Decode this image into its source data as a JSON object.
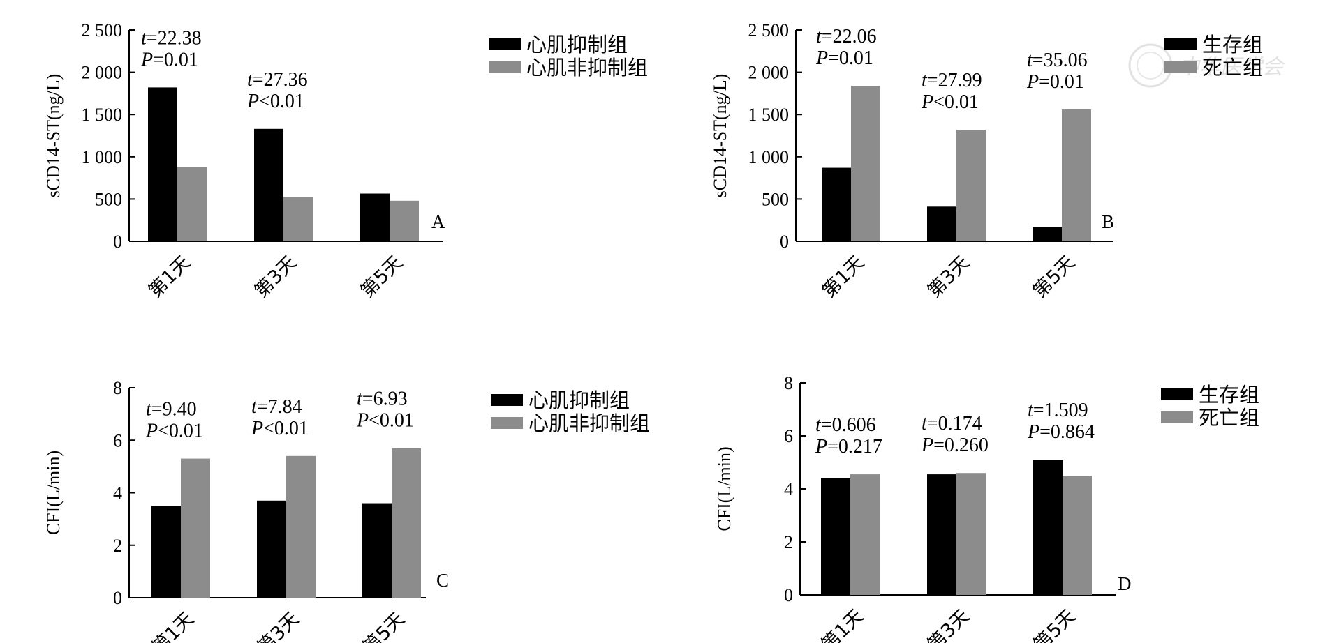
{
  "colors": {
    "dark": "#000000",
    "light": "#8c8c8c"
  },
  "watermark": "中华医学会",
  "chart_data": [
    {
      "type": "bar",
      "panel_label": "A",
      "ylabel": "sCD14-ST(ng/L)",
      "ylim": [
        0,
        2500
      ],
      "yticks": [
        0,
        500,
        1000,
        1500,
        2000,
        2500
      ],
      "ytick_labels": [
        "0",
        "500",
        "1 000",
        "1 500",
        "2 000",
        "2 500"
      ],
      "categories": [
        "第1天",
        "第3天",
        "第5天"
      ],
      "series": [
        {
          "name": "心肌抑制组",
          "values": [
            1820,
            1330,
            565
          ]
        },
        {
          "name": "心肌非抑制组",
          "values": [
            875,
            520,
            480
          ]
        }
      ],
      "annotations": [
        {
          "t": "t=22.38",
          "p": "P=0.01"
        },
        {
          "t": "t=27.36",
          "p": "P<0.01"
        },
        {
          "t": "",
          "p": ""
        }
      ],
      "legend_placement": "right"
    },
    {
      "type": "bar",
      "panel_label": "B",
      "ylabel": "sCD14-ST(ng/L)",
      "ylim": [
        0,
        2500
      ],
      "yticks": [
        0,
        500,
        1000,
        1500,
        2000,
        2500
      ],
      "ytick_labels": [
        "0",
        "500",
        "1 000",
        "1 500",
        "2 000",
        "2 500"
      ],
      "categories": [
        "第1天",
        "第3天",
        "第5天"
      ],
      "series": [
        {
          "name": "生存组",
          "values": [
            870,
            410,
            170
          ]
        },
        {
          "name": "死亡组",
          "values": [
            1840,
            1320,
            1560
          ]
        }
      ],
      "annotations": [
        {
          "t": "t=22.06",
          "p": "P=0.01"
        },
        {
          "t": "t=27.99",
          "p": "P<0.01"
        },
        {
          "t": "t=35.06",
          "p": "P=0.01"
        }
      ],
      "legend_placement": "top-right"
    },
    {
      "type": "bar",
      "panel_label": "C",
      "ylabel": "CFI(L/min)",
      "ylim": [
        0,
        8
      ],
      "yticks": [
        0,
        2,
        4,
        6,
        8
      ],
      "ytick_labels": [
        "0",
        "2",
        "4",
        "6",
        "8"
      ],
      "categories": [
        "第1天",
        "第3天",
        "第5天"
      ],
      "series": [
        {
          "name": "心肌抑制组",
          "values": [
            3.5,
            3.7,
            3.6
          ]
        },
        {
          "name": "心肌非抑制组",
          "values": [
            5.3,
            5.4,
            5.7
          ]
        }
      ],
      "annotations": [
        {
          "t": "t=9.40",
          "p": "P<0.01"
        },
        {
          "t": "t=7.84",
          "p": "P<0.01"
        },
        {
          "t": "t=6.93",
          "p": "P<0.01"
        }
      ],
      "legend_placement": "right"
    },
    {
      "type": "bar",
      "panel_label": "D",
      "ylabel": "CFI(L/min)",
      "ylim": [
        0,
        8
      ],
      "yticks": [
        0,
        2,
        4,
        6,
        8
      ],
      "ytick_labels": [
        "0",
        "2",
        "4",
        "6",
        "8"
      ],
      "categories": [
        "第1天",
        "第3天",
        "第5天"
      ],
      "series": [
        {
          "name": "生存组",
          "values": [
            4.4,
            4.55,
            5.1
          ]
        },
        {
          "name": "死亡组",
          "values": [
            4.55,
            4.6,
            4.5
          ]
        }
      ],
      "annotations": [
        {
          "t": "t=0.606",
          "p": "P=0.217"
        },
        {
          "t": "t=0.174",
          "p": "P=0.260"
        },
        {
          "t": "t=1.509",
          "p": "P=0.864"
        }
      ],
      "legend_placement": "top-right"
    }
  ]
}
